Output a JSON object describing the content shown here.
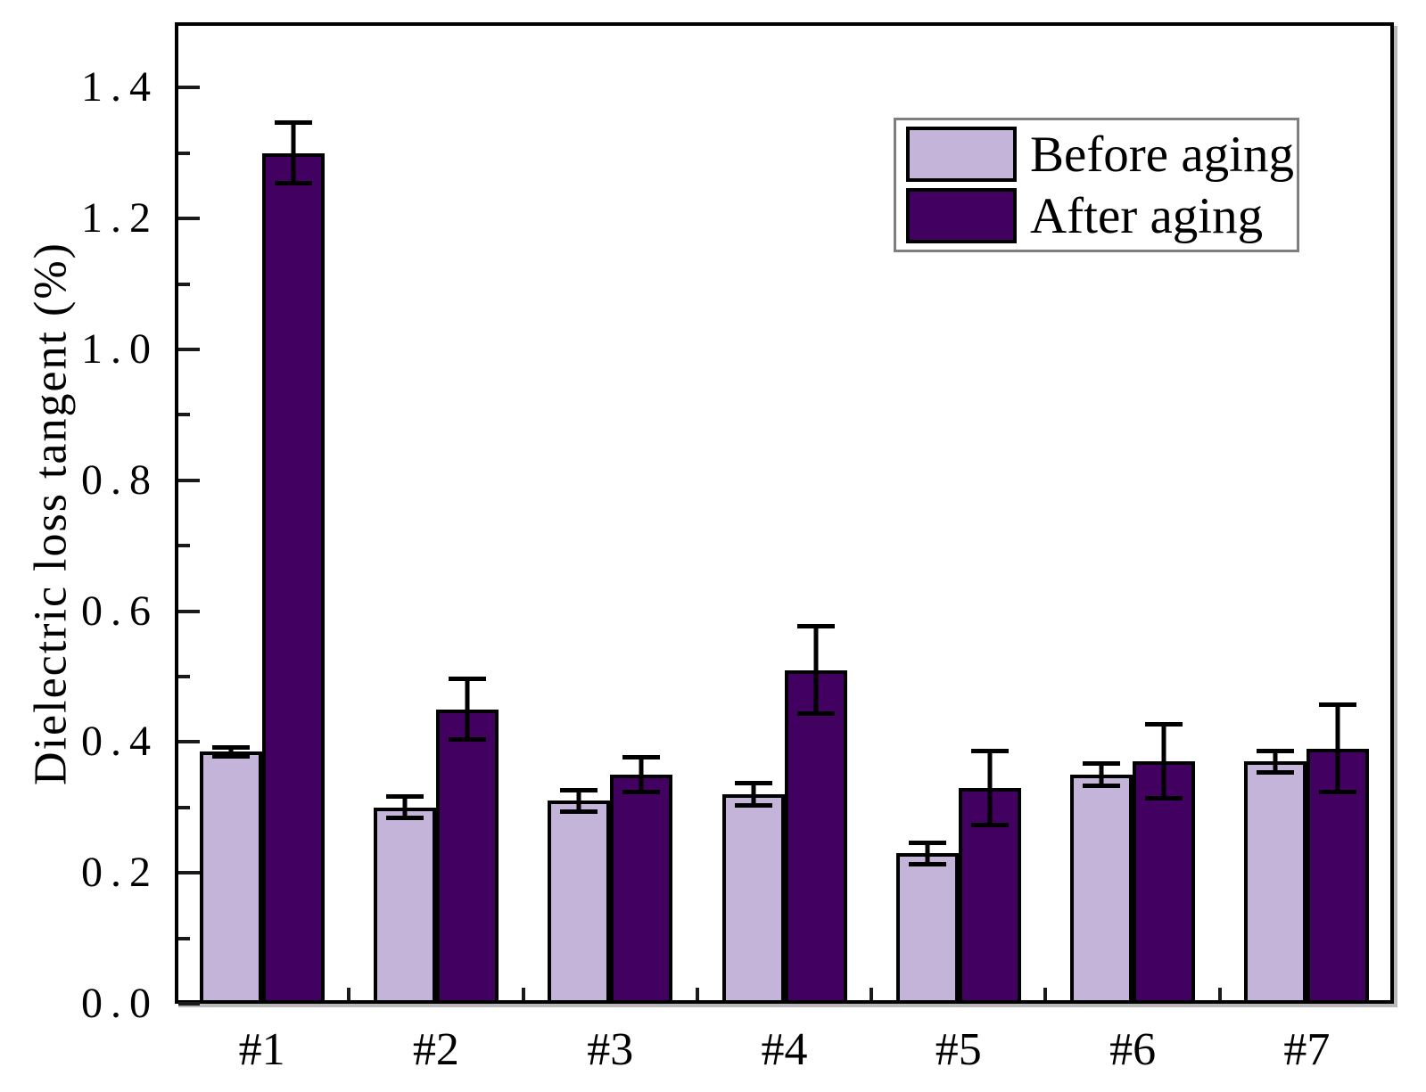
{
  "figure": {
    "background": "#ffffff",
    "axis_color": "#000000",
    "tick_color": "#1a1a1a",
    "legend_border_color": "#7f7f7f"
  },
  "chart_data": {
    "type": "bar",
    "title": "",
    "xlabel": "",
    "ylabel": "Dielectric loss tangent (%)",
    "categories": [
      "#1",
      "#2",
      "#3",
      "#4",
      "#5",
      "#6",
      "#7"
    ],
    "series": [
      {
        "name": "Before aging",
        "color": "#c5b4d9",
        "values": [
          0.385,
          0.3,
          0.31,
          0.32,
          0.23,
          0.35,
          0.37
        ],
        "errors": [
          0.01,
          0.02,
          0.02,
          0.02,
          0.02,
          0.02,
          0.02
        ]
      },
      {
        "name": "After aging",
        "color": "#420060",
        "values": [
          1.3,
          0.45,
          0.35,
          0.51,
          0.33,
          0.37,
          0.39
        ],
        "errors": [
          0.05,
          0.05,
          0.03,
          0.07,
          0.06,
          0.06,
          0.07
        ]
      }
    ],
    "ylim": [
      0.0,
      1.5
    ],
    "ytick_labels": [
      "0.0",
      "0.2",
      "0.4",
      "0.6",
      "0.8",
      "1.0",
      "1.2",
      "1.4"
    ],
    "yticks_major": [
      0.0,
      0.2,
      0.4,
      0.6,
      0.8,
      1.0,
      1.2,
      1.4
    ],
    "yticks_minor": [
      0.1,
      0.3,
      0.5,
      0.7,
      0.9,
      1.1,
      1.3
    ],
    "grid": false,
    "error_bar_color": "#000000",
    "bar_outline_color": "#000000",
    "legend_position": "top-right"
  }
}
